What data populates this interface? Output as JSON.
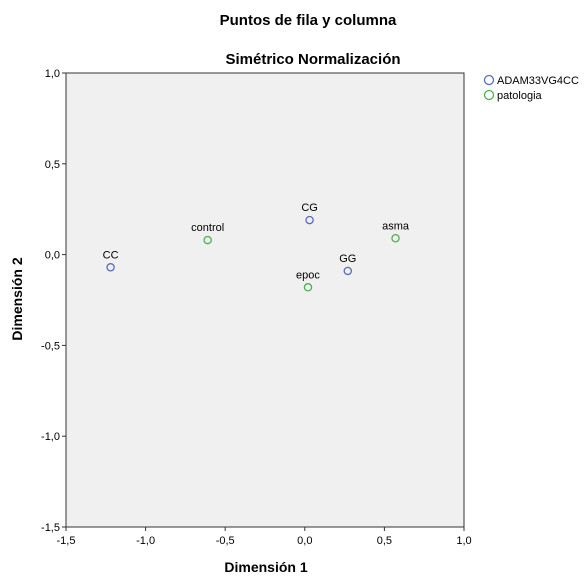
{
  "chart_data": {
    "type": "scatter",
    "title": "Puntos de fila y columna",
    "subtitle": "Simétrico Normalización",
    "xlabel": "Dimensión 1",
    "ylabel": "Dimensión 2",
    "xlim": [
      -1.5,
      1.0
    ],
    "ylim": [
      -1.5,
      1.0
    ],
    "xticks": [
      "-1,5",
      "-1,0",
      "-0,5",
      "0,0",
      "0,5",
      "1,0"
    ],
    "yticks": [
      "1,0",
      "0,5",
      "0,0",
      "-0,5",
      "-1,0",
      "-1,5"
    ],
    "grid": false,
    "legend_position": "top-right",
    "series": [
      {
        "name": "ADAM33VG4CC",
        "color": "#5b6bbf",
        "points": [
          {
            "label": "CC",
            "x": -1.22,
            "y": -0.07
          },
          {
            "label": "CG",
            "x": 0.03,
            "y": 0.19
          },
          {
            "label": "GG",
            "x": 0.27,
            "y": -0.09
          }
        ]
      },
      {
        "name": "patologia",
        "color": "#4caf50",
        "points": [
          {
            "label": "control",
            "x": -0.61,
            "y": 0.08
          },
          {
            "label": "asma",
            "x": 0.57,
            "y": 0.09
          },
          {
            "label": "epoc",
            "x": 0.02,
            "y": -0.18
          }
        ]
      }
    ]
  }
}
